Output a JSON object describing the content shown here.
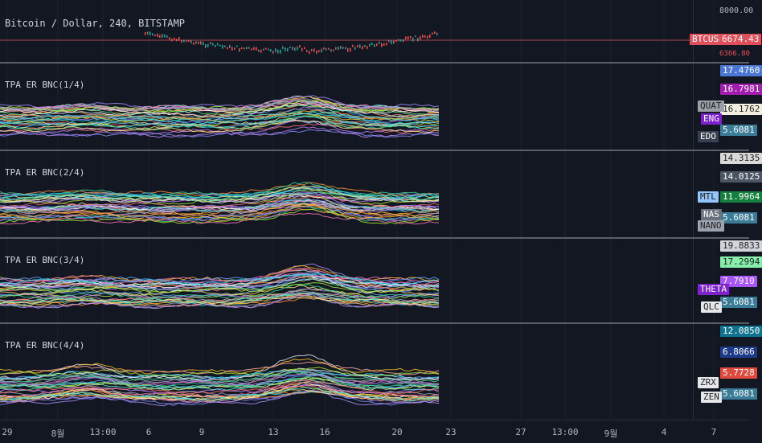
{
  "main_pane": {
    "title": "Bitcoin / Dollar, 240, BITSTAMP",
    "top_tick": "8000.00",
    "symbol_tag": "BTCUSD",
    "price_tag": "6674.43",
    "small_tick": "6366.80",
    "colors": {
      "tag_bg": "#e0505c",
      "line": "#b04a52"
    }
  },
  "indicator_panes": [
    {
      "title": "TPA ER BNC(1/4)",
      "labels": [
        {
          "text": "17.4760",
          "bg": "#4a77d4",
          "fg": "#ffffff"
        },
        {
          "text": "16.7981",
          "bg": "#a21caf",
          "fg": "#ffffff"
        },
        {
          "text": "16.1762",
          "bg": "#f3efe0",
          "fg": "#222222"
        },
        {
          "text": "5.6081",
          "bg": "#3b7d99",
          "fg": "#ffffff"
        }
      ],
      "tags": [
        {
          "text": "QUAT",
          "bg": "#9aa0a6",
          "fg": "#222222"
        },
        {
          "text": "ENG",
          "bg": "#7e22ce",
          "fg": "#ffffff"
        },
        {
          "text": "EDO",
          "bg": "#374151",
          "fg": "#ffffff"
        }
      ]
    },
    {
      "title": "TPA ER BNC(2/4)",
      "labels": [
        {
          "text": "14.3135",
          "bg": "#d9d9d9",
          "fg": "#222222"
        },
        {
          "text": "14.0125",
          "bg": "#4b5563",
          "fg": "#ffffff"
        },
        {
          "text": "11.9964",
          "bg": "#15803d",
          "fg": "#ffffff"
        },
        {
          "text": "5.6081",
          "bg": "#3b7d99",
          "fg": "#ffffff"
        }
      ],
      "tags": [
        {
          "text": "MTL",
          "bg": "#93c5fd",
          "fg": "#222222"
        },
        {
          "text": "NAS",
          "bg": "#6b7280",
          "fg": "#ffffff"
        },
        {
          "text": "NANO",
          "bg": "#9ca3af",
          "fg": "#222222"
        }
      ]
    },
    {
      "title": "TPA ER BNC(3/4)",
      "labels": [
        {
          "text": "19.8833",
          "bg": "#d1d5db",
          "fg": "#222222"
        },
        {
          "text": "17.2994",
          "bg": "#86efac",
          "fg": "#222222"
        },
        {
          "text": "7.7910",
          "bg": "#a855f7",
          "fg": "#ffffff"
        },
        {
          "text": "5.6081",
          "bg": "#3b7d99",
          "fg": "#ffffff"
        }
      ],
      "tags": [
        {
          "text": "THETA",
          "bg": "#7e22ce",
          "fg": "#ffffff"
        },
        {
          "text": "QLC",
          "bg": "#e5e7eb",
          "fg": "#222222"
        }
      ]
    },
    {
      "title": "TPA ER BNC(4/4)",
      "labels": [
        {
          "text": "12.0850",
          "bg": "#0e7490",
          "fg": "#ffffff"
        },
        {
          "text": "6.8066",
          "bg": "#1e3a8a",
          "fg": "#ffffff"
        },
        {
          "text": "5.7728",
          "bg": "#e04a3c",
          "fg": "#ffffff"
        },
        {
          "text": "5.6081",
          "bg": "#3b7d99",
          "fg": "#ffffff"
        }
      ],
      "tags": [
        {
          "text": "ZRX",
          "bg": "#e5e7eb",
          "fg": "#222222"
        },
        {
          "text": "ZEN",
          "bg": "#e5e7eb",
          "fg": "#222222"
        }
      ]
    }
  ],
  "time_axis": [
    "29",
    "8월",
    "13:00",
    "6",
    "9",
    "13",
    "16",
    "20",
    "23",
    "27",
    "13:00",
    "9월",
    "4",
    "7"
  ]
}
